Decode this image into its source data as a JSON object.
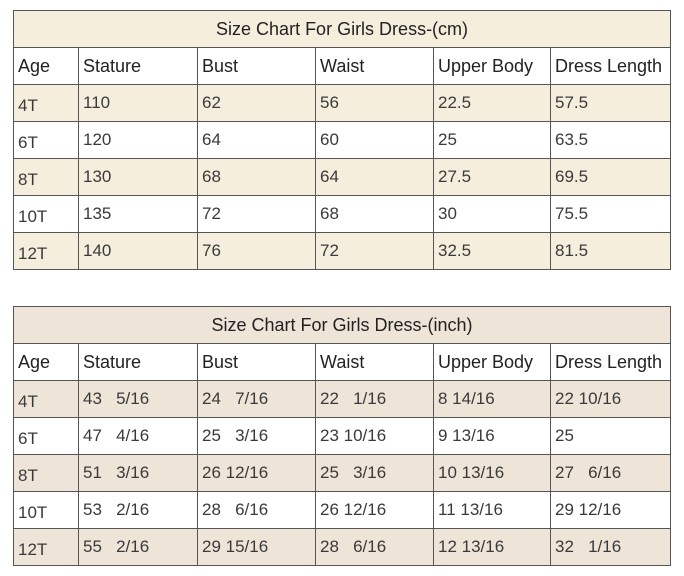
{
  "table_cm": {
    "title": "Size Chart For Girls Dress-(cm)",
    "headers": [
      "Age",
      "Stature",
      "Bust",
      "Waist",
      "Upper Body",
      "Dress Length"
    ],
    "rows": [
      [
        "4T",
        "110",
        "62",
        "56",
        "22.5",
        "57.5"
      ],
      [
        "6T",
        "120",
        "64",
        "60",
        "25",
        "63.5"
      ],
      [
        "8T",
        "130",
        "68",
        "64",
        "27.5",
        "69.5"
      ],
      [
        "10T",
        "135",
        "72",
        "68",
        "30",
        "75.5"
      ],
      [
        "12T",
        "140",
        "76",
        "72",
        "32.5",
        "81.5"
      ]
    ]
  },
  "table_inch": {
    "title": "Size Chart For Girls Dress-(inch)",
    "headers": [
      "Age",
      "Stature",
      "Bust",
      "Waist",
      "Upper Body",
      "Dress Length"
    ],
    "rows": [
      [
        "4T",
        "43   5/16",
        "24   7/16",
        "22   1/16",
        "8 14/16",
        "22 10/16"
      ],
      [
        "6T",
        "47   4/16",
        "25   3/16",
        "23 10/16",
        "9 13/16",
        "25"
      ],
      [
        "8T",
        "51   3/16",
        "26 12/16",
        "25   3/16",
        "10 13/16",
        "27   6/16"
      ],
      [
        "10T",
        "53   2/16",
        "28   6/16",
        "26 12/16",
        "11 13/16",
        "29 12/16"
      ],
      [
        "12T",
        "55   2/16",
        "29 15/16",
        "28   6/16",
        "12 13/16",
        "32   1/16"
      ]
    ]
  },
  "colors": {
    "cm_shade": "#f5eedc",
    "inch_shade": "#efe4d8",
    "border": "#555555"
  }
}
